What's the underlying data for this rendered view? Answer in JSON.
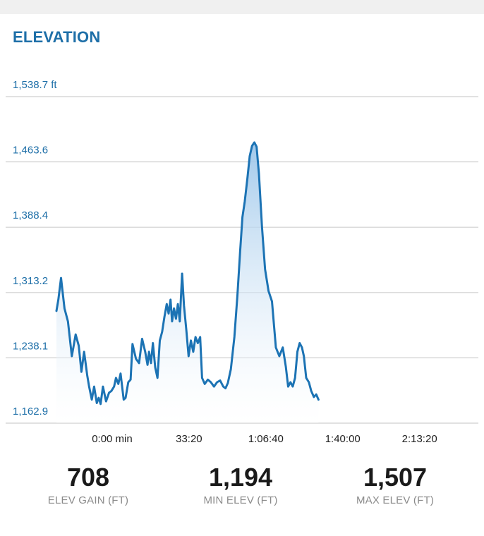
{
  "title": "ELEVATION",
  "chart_data": {
    "type": "area",
    "title": "ELEVATION",
    "xlabel": "",
    "ylabel": "",
    "y_tick_labels": [
      "1,538.7 ft",
      "1,463.6",
      "1,388.4",
      "1,313.2",
      "1,238.1",
      "1,162.9"
    ],
    "y_ticks": [
      1538.7,
      1463.6,
      1388.4,
      1313.2,
      1238.1,
      1162.9
    ],
    "ylim": [
      1162.9,
      1538.7
    ],
    "x_tick_labels": [
      "0:00 min",
      "33:20",
      "1:06:40",
      "1:40:00",
      "2:13:20"
    ],
    "x_ticks": [
      0,
      2000,
      4000,
      6000,
      8000
    ],
    "xlim": [
      -1450,
      9200
    ],
    "grid": true,
    "colors": {
      "line": "#1c73b4",
      "fill_top": "#9cc6ea",
      "fill_bottom": "#ffffff",
      "grid": "#cfcfcf"
    },
    "series": [
      {
        "values": [
          [
            -1450,
            1292
          ],
          [
            -1400,
            1305
          ],
          [
            -1330,
            1330
          ],
          [
            -1240,
            1295
          ],
          [
            -1150,
            1280
          ],
          [
            -1050,
            1240
          ],
          [
            -950,
            1265
          ],
          [
            -870,
            1252
          ],
          [
            -800,
            1222
          ],
          [
            -730,
            1245
          ],
          [
            -650,
            1218
          ],
          [
            -600,
            1205
          ],
          [
            -530,
            1190
          ],
          [
            -470,
            1205
          ],
          [
            -400,
            1186
          ],
          [
            -350,
            1192
          ],
          [
            -300,
            1185
          ],
          [
            -240,
            1205
          ],
          [
            -160,
            1188
          ],
          [
            -80,
            1198
          ],
          [
            -20,
            1200
          ],
          [
            50,
            1205
          ],
          [
            100,
            1215
          ],
          [
            160,
            1208
          ],
          [
            220,
            1220
          ],
          [
            300,
            1190
          ],
          [
            350,
            1192
          ],
          [
            420,
            1210
          ],
          [
            480,
            1213
          ],
          [
            530,
            1254
          ],
          [
            620,
            1237
          ],
          [
            700,
            1232
          ],
          [
            780,
            1260
          ],
          [
            860,
            1245
          ],
          [
            920,
            1230
          ],
          [
            960,
            1245
          ],
          [
            1010,
            1232
          ],
          [
            1060,
            1255
          ],
          [
            1120,
            1227
          ],
          [
            1180,
            1215
          ],
          [
            1240,
            1258
          ],
          [
            1300,
            1268
          ],
          [
            1360,
            1285
          ],
          [
            1420,
            1300
          ],
          [
            1470,
            1289
          ],
          [
            1520,
            1305
          ],
          [
            1560,
            1280
          ],
          [
            1610,
            1295
          ],
          [
            1660,
            1283
          ],
          [
            1710,
            1300
          ],
          [
            1760,
            1280
          ],
          [
            1820,
            1335
          ],
          [
            1870,
            1298
          ],
          [
            1930,
            1270
          ],
          [
            1990,
            1240
          ],
          [
            2050,
            1258
          ],
          [
            2110,
            1245
          ],
          [
            2170,
            1262
          ],
          [
            2230,
            1255
          ],
          [
            2290,
            1262
          ],
          [
            2340,
            1215
          ],
          [
            2410,
            1208
          ],
          [
            2490,
            1213
          ],
          [
            2570,
            1210
          ],
          [
            2650,
            1205
          ],
          [
            2730,
            1210
          ],
          [
            2810,
            1212
          ],
          [
            2890,
            1205
          ],
          [
            2950,
            1203
          ],
          [
            3010,
            1209
          ],
          [
            3090,
            1225
          ],
          [
            3180,
            1262
          ],
          [
            3260,
            1310
          ],
          [
            3330,
            1360
          ],
          [
            3390,
            1400
          ],
          [
            3450,
            1418
          ],
          [
            3520,
            1445
          ],
          [
            3580,
            1470
          ],
          [
            3640,
            1482
          ],
          [
            3700,
            1486
          ],
          [
            3760,
            1481
          ],
          [
            3820,
            1450
          ],
          [
            3900,
            1388
          ],
          [
            3980,
            1340
          ],
          [
            4070,
            1315
          ],
          [
            4160,
            1303
          ],
          [
            4260,
            1250
          ],
          [
            4350,
            1240
          ],
          [
            4440,
            1250
          ],
          [
            4520,
            1228
          ],
          [
            4580,
            1205
          ],
          [
            4640,
            1210
          ],
          [
            4700,
            1205
          ],
          [
            4760,
            1215
          ],
          [
            4820,
            1245
          ],
          [
            4880,
            1255
          ],
          [
            4940,
            1250
          ],
          [
            4990,
            1240
          ],
          [
            5050,
            1215
          ],
          [
            5120,
            1210
          ],
          [
            5180,
            1200
          ],
          [
            5250,
            1193
          ],
          [
            5310,
            1196
          ],
          [
            5370,
            1190
          ]
        ]
      }
    ]
  },
  "stats": [
    {
      "value": "708",
      "label": "ELEV GAIN (FT)"
    },
    {
      "value": "1,194",
      "label": "MIN ELEV (FT)"
    },
    {
      "value": "1,507",
      "label": "MAX ELEV (FT)"
    }
  ]
}
